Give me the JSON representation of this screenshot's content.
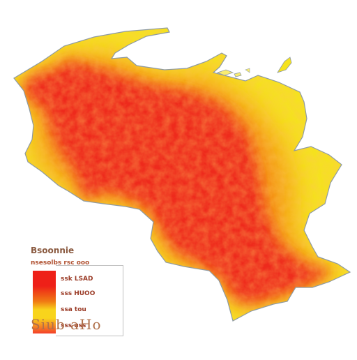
{
  "legend": {
    "title": "Bsoonnie",
    "subtitle": "nsesolbs rsc ooo",
    "items": [
      {
        "label": "ssk LSAD",
        "color": "#ee2018"
      },
      {
        "label": "sss HUOO",
        "color": "#f07a14"
      },
      {
        "label": "ssa tou",
        "color": "#f8d41c"
      },
      {
        "label": "sss uss",
        "color": "#f4402a"
      }
    ]
  },
  "source": "Siub aHo",
  "colors": {
    "low": "#f5e21e",
    "mid": "#f59a18",
    "high": "#ee2a1c",
    "outline": "#8e9aa3"
  }
}
